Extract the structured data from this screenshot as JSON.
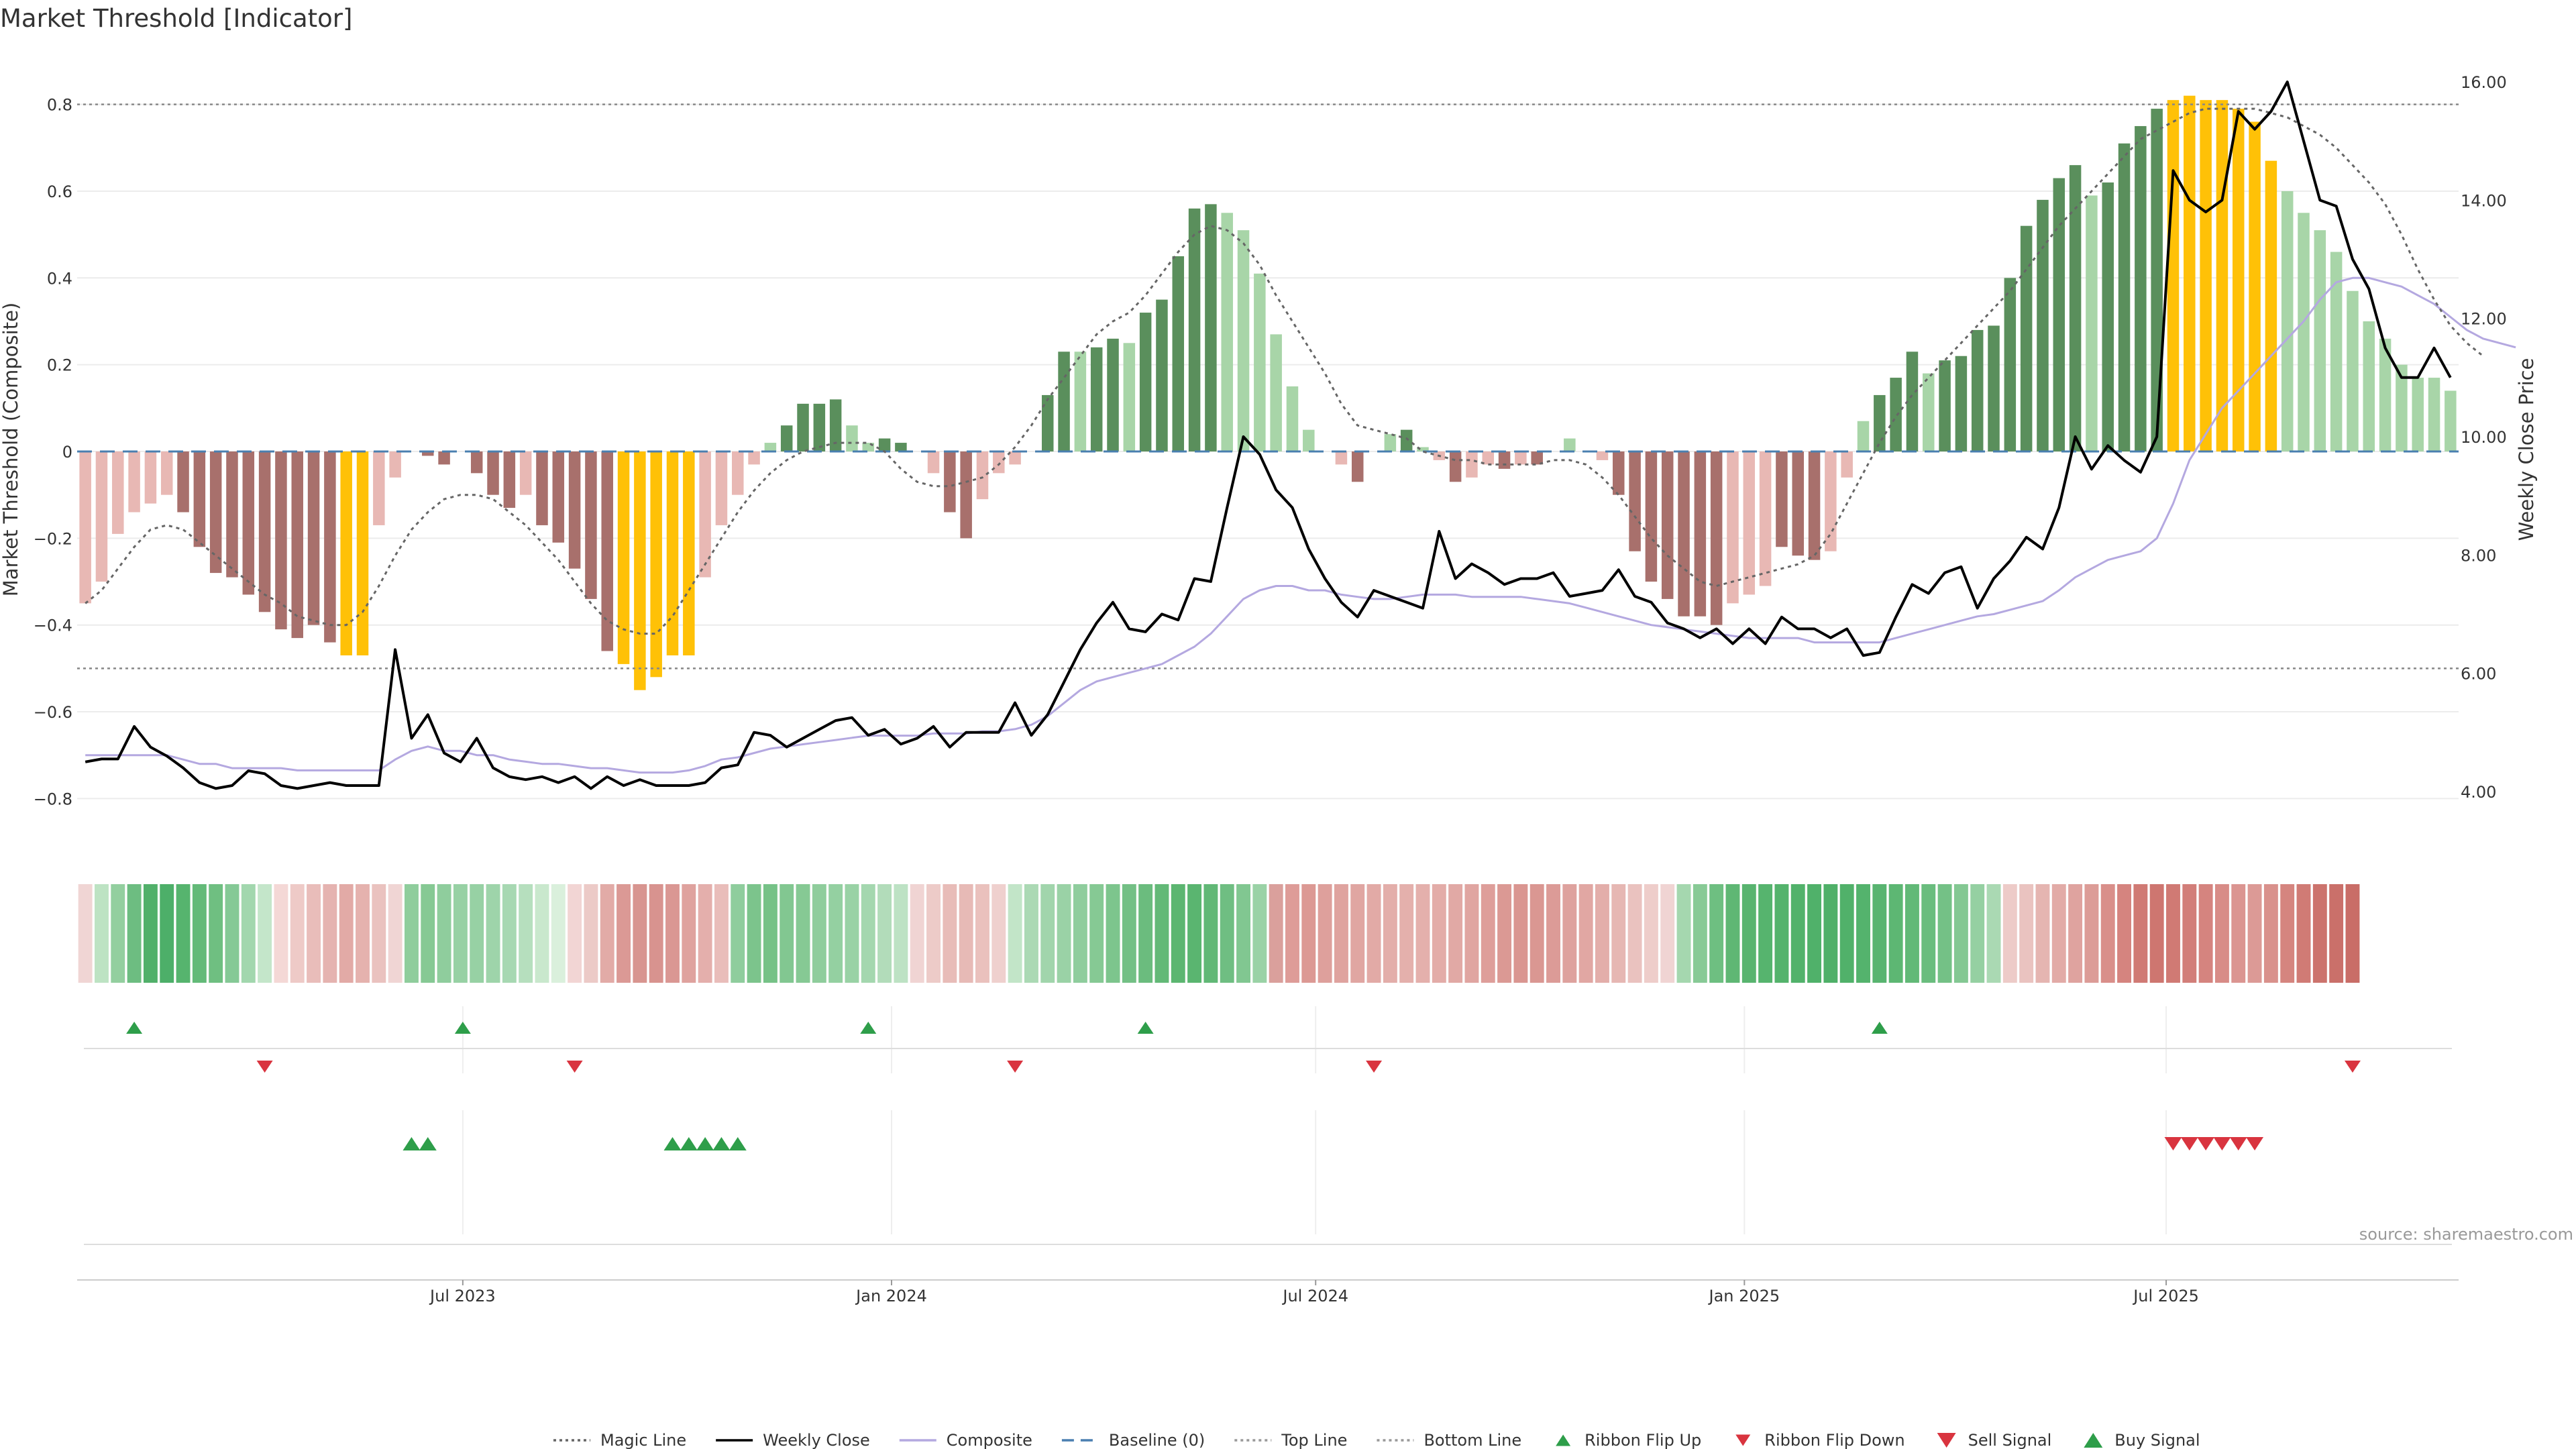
{
  "title": "Market Threshold [Indicator]",
  "source": "source: sharemaestro.com",
  "colors": {
    "bullish_strong": "#5a8f5c",
    "bullish_weak": "#a8d5a8",
    "bearish_strong": "#a8706c",
    "bearish_weak": "#e8b8b4",
    "extreme": "#ffc107",
    "weekly_close": "#000000",
    "composite": "#b4a8e0",
    "magic_line": "#666666",
    "baseline": "#4a7fb0",
    "buy": "#2e9e4a",
    "sell": "#d9343f"
  },
  "chart_data": {
    "type": "bar",
    "x_start": "2023-01-20",
    "x_step_days": 7,
    "ylabel_left": "Market Threshold (Composite)",
    "ylabel_right": "Weekly Close Price",
    "ylim_left": [
      -0.92,
      0.92
    ],
    "ylim_right": [
      3.0,
      16.5
    ],
    "yticks_left": [
      {
        "v": 0.8,
        "label": "0.8"
      },
      {
        "v": 0.6,
        "label": "0.6"
      },
      {
        "v": 0.4,
        "label": "0.4"
      },
      {
        "v": 0.2,
        "label": "0.2"
      },
      {
        "v": 0.0,
        "label": "0"
      },
      {
        "v": -0.2,
        "label": "−0.2"
      },
      {
        "v": -0.4,
        "label": "−0.4"
      },
      {
        "v": -0.6,
        "label": "−0.6"
      },
      {
        "v": -0.8,
        "label": "−0.8"
      }
    ],
    "yticks_right": [
      {
        "v": 16,
        "label": "16.00"
      },
      {
        "v": 14,
        "label": "14.00"
      },
      {
        "v": 12,
        "label": "12.00"
      },
      {
        "v": 10,
        "label": "10.00"
      },
      {
        "v": 8,
        "label": "8.00"
      },
      {
        "v": 6,
        "label": "6.00"
      },
      {
        "v": 4,
        "label": "4.00"
      }
    ],
    "xticks": [
      {
        "date": "2023-07-01",
        "label": "Jul 2023"
      },
      {
        "date": "2024-01-01",
        "label": "Jan 2024"
      },
      {
        "date": "2024-07-01",
        "label": "Jul 2024"
      },
      {
        "date": "2025-01-01",
        "label": "Jan 2025"
      },
      {
        "date": "2025-07-01",
        "label": "Jul 2025"
      }
    ],
    "top_line": 0.8,
    "bottom_line": -0.5,
    "baseline": 0,
    "composite_bars": [
      -0.35,
      -0.3,
      -0.19,
      -0.14,
      -0.12,
      -0.1,
      -0.14,
      -0.22,
      -0.28,
      -0.29,
      -0.33,
      -0.37,
      -0.41,
      -0.43,
      -0.4,
      -0.44,
      -0.47,
      -0.47,
      -0.17,
      -0.06,
      0,
      -0.01,
      -0.03,
      0,
      -0.05,
      -0.1,
      -0.13,
      -0.1,
      -0.17,
      -0.21,
      -0.27,
      -0.34,
      -0.46,
      -0.49,
      -0.55,
      -0.52,
      -0.47,
      -0.47,
      -0.29,
      -0.17,
      -0.1,
      -0.03,
      0.02,
      0.06,
      0.11,
      0.11,
      0.12,
      0.06,
      0.02,
      0.03,
      0.02,
      0,
      -0.05,
      -0.14,
      -0.2,
      -0.11,
      -0.05,
      -0.03,
      0,
      0.13,
      0.23,
      0.23,
      0.24,
      0.26,
      0.25,
      0.32,
      0.35,
      0.45,
      0.56,
      0.57,
      0.55,
      0.51,
      0.41,
      0.27,
      0.15,
      0.05,
      0,
      -0.03,
      -0.07,
      0,
      0.04,
      0.05,
      0.01,
      -0.02,
      -0.07,
      -0.06,
      -0.03,
      -0.04,
      -0.03,
      -0.03,
      0,
      0.03,
      0,
      -0.02,
      -0.1,
      -0.23,
      -0.3,
      -0.34,
      -0.38,
      -0.38,
      -0.4,
      -0.35,
      -0.33,
      -0.31,
      -0.22,
      -0.24,
      -0.25,
      -0.23,
      -0.06,
      0.07,
      0.13,
      0.17,
      0.23,
      0.18,
      0.21,
      0.22,
      0.28,
      0.29,
      0.4,
      0.52,
      0.58,
      0.63,
      0.66,
      0.59,
      0.62,
      0.71,
      0.75,
      0.79,
      0.81,
      0.82,
      0.81,
      0.81,
      0.79,
      0.76,
      0.67,
      0.6,
      0.55,
      0.51,
      0.46,
      0.37,
      0.3,
      0.26,
      0.2,
      0.17,
      0.17,
      0.14
    ],
    "bar_colors": [
      "bw",
      "bw",
      "bw",
      "bw",
      "bw",
      "bw",
      "bs",
      "bs",
      "bs",
      "bs",
      "bs",
      "bs",
      "bs",
      "bs",
      "bs",
      "bs",
      "ex",
      "ex",
      "bw",
      "bw",
      "bw",
      "bs",
      "bs",
      "bw",
      "bs",
      "bs",
      "bs",
      "bw",
      "bs",
      "bs",
      "bs",
      "bs",
      "bs",
      "ex",
      "ex",
      "ex",
      "ex",
      "ex",
      "bw",
      "bw",
      "bw",
      "bw",
      "gw",
      "gs",
      "gs",
      "gs",
      "gs",
      "gw",
      "gw",
      "gs",
      "gs",
      "bw",
      "bw",
      "bs",
      "bs",
      "bw",
      "bw",
      "bw",
      "gw",
      "gs",
      "gs",
      "gw",
      "gs",
      "gs",
      "gw",
      "gs",
      "gs",
      "gs",
      "gs",
      "gs",
      "gw",
      "gw",
      "gw",
      "gw",
      "gw",
      "gw",
      "bw",
      "bw",
      "bs",
      "gw",
      "gw",
      "gs",
      "gw",
      "bw",
      "bs",
      "bw",
      "bw",
      "bs",
      "bw",
      "bs",
      "gw",
      "gw",
      "bw",
      "bw",
      "bs",
      "bs",
      "bs",
      "bs",
      "bs",
      "bs",
      "bs",
      "bw",
      "bw",
      "bw",
      "bs",
      "bs",
      "bs",
      "bw",
      "bw",
      "gw",
      "gs",
      "gs",
      "gs",
      "gw",
      "gs",
      "gs",
      "gs",
      "gs",
      "gs",
      "gs",
      "gs",
      "gs",
      "gs",
      "gw",
      "gs",
      "gs",
      "gs",
      "gs",
      "ex",
      "ex",
      "ex",
      "ex",
      "ex",
      "ex",
      "ex",
      "gw",
      "gw",
      "gw",
      "gw",
      "gw",
      "gw",
      "gw",
      "gw",
      "gw",
      "gw",
      "gw",
      "gw",
      "gw"
    ],
    "series": [
      {
        "name": "Weekly Close",
        "axis": "right",
        "values": [
          4.5,
          4.55,
          4.55,
          5.1,
          4.75,
          4.6,
          4.4,
          4.15,
          4.05,
          4.1,
          4.35,
          4.3,
          4.1,
          4.05,
          4.1,
          4.15,
          4.1,
          4.1,
          4.1,
          6.4,
          4.9,
          5.3,
          4.65,
          4.5,
          4.9,
          4.4,
          4.25,
          4.2,
          4.25,
          4.15,
          4.25,
          4.05,
          4.25,
          4.1,
          4.2,
          4.1,
          4.1,
          4.1,
          4.15,
          4.4,
          4.45,
          5.0,
          4.95,
          4.75,
          4.9,
          5.05,
          5.2,
          5.25,
          4.95,
          5.05,
          4.8,
          4.9,
          5.1,
          4.75,
          5.0,
          5.0,
          5.0,
          5.5,
          4.95,
          5.3,
          5.85,
          6.4,
          6.85,
          7.2,
          6.75,
          6.7,
          7.0,
          6.9,
          7.6,
          7.55,
          8.8,
          10.0,
          9.7,
          9.1,
          8.8,
          8.1,
          7.6,
          7.2,
          6.95,
          7.4,
          7.3,
          7.2,
          7.1,
          8.4,
          7.6,
          7.85,
          7.7,
          7.5,
          7.6,
          7.6,
          7.7,
          7.3,
          7.35,
          7.4,
          7.75,
          7.3,
          7.2,
          6.85,
          6.75,
          6.6,
          6.75,
          6.5,
          6.75,
          6.5,
          6.95,
          6.75,
          6.75,
          6.6,
          6.75,
          6.3,
          6.35,
          6.95,
          7.5,
          7.35,
          7.7,
          7.8,
          7.1,
          7.6,
          7.9,
          8.3,
          8.1,
          8.8,
          10.0,
          9.45,
          9.85,
          9.6,
          9.4,
          10.0,
          14.5,
          14.0,
          13.8,
          14.0,
          15.5,
          15.2,
          15.5,
          16.0,
          15.0,
          14.0,
          13.9,
          13.0,
          12.5,
          11.5,
          11.0,
          11.0,
          11.5,
          11.0
        ],
        "color": "#000000"
      },
      {
        "name": "Composite",
        "axis": "left",
        "values": [
          -0.7,
          -0.7,
          -0.7,
          -0.7,
          -0.7,
          -0.7,
          -0.71,
          -0.72,
          -0.72,
          -0.73,
          -0.73,
          -0.73,
          -0.73,
          -0.735,
          -0.735,
          -0.735,
          -0.735,
          -0.735,
          -0.735,
          -0.71,
          -0.69,
          -0.68,
          -0.69,
          -0.69,
          -0.7,
          -0.7,
          -0.71,
          -0.715,
          -0.72,
          -0.72,
          -0.725,
          -0.73,
          -0.73,
          -0.735,
          -0.74,
          -0.74,
          -0.74,
          -0.735,
          -0.725,
          -0.71,
          -0.705,
          -0.695,
          -0.685,
          -0.68,
          -0.675,
          -0.67,
          -0.665,
          -0.66,
          -0.655,
          -0.655,
          -0.655,
          -0.655,
          -0.65,
          -0.65,
          -0.65,
          -0.645,
          -0.645,
          -0.64,
          -0.63,
          -0.61,
          -0.58,
          -0.55,
          -0.53,
          -0.52,
          -0.51,
          -0.5,
          -0.49,
          -0.47,
          -0.45,
          -0.42,
          -0.38,
          -0.34,
          -0.32,
          -0.31,
          -0.31,
          -0.32,
          -0.32,
          -0.33,
          -0.335,
          -0.34,
          -0.34,
          -0.335,
          -0.33,
          -0.33,
          -0.33,
          -0.335,
          -0.335,
          -0.335,
          -0.335,
          -0.34,
          -0.345,
          -0.35,
          -0.36,
          -0.37,
          -0.38,
          -0.39,
          -0.4,
          -0.405,
          -0.41,
          -0.415,
          -0.42,
          -0.425,
          -0.43,
          -0.43,
          -0.43,
          -0.43,
          -0.44,
          -0.44,
          -0.44,
          -0.44,
          -0.44,
          -0.43,
          -0.42,
          -0.41,
          -0.4,
          -0.39,
          -0.38,
          -0.375,
          -0.365,
          -0.355,
          -0.345,
          -0.32,
          -0.29,
          -0.27,
          -0.25,
          -0.24,
          -0.23,
          -0.2,
          -0.12,
          -0.02,
          0.04,
          0.1,
          0.14,
          0.18,
          0.22,
          0.26,
          0.3,
          0.35,
          0.39,
          0.4,
          0.4,
          0.39,
          0.38,
          0.36,
          0.34,
          0.31,
          0.28,
          0.26,
          0.25,
          0.24
        ],
        "color": "#b4a8e0"
      },
      {
        "name": "Magic Line",
        "axis": "left",
        "values": [
          -0.35,
          -0.32,
          -0.27,
          -0.22,
          -0.18,
          -0.17,
          -0.18,
          -0.21,
          -0.24,
          -0.27,
          -0.3,
          -0.33,
          -0.35,
          -0.38,
          -0.39,
          -0.4,
          -0.4,
          -0.37,
          -0.31,
          -0.24,
          -0.18,
          -0.14,
          -0.11,
          -0.1,
          -0.1,
          -0.11,
          -0.14,
          -0.17,
          -0.21,
          -0.25,
          -0.3,
          -0.35,
          -0.39,
          -0.41,
          -0.42,
          -0.42,
          -0.38,
          -0.32,
          -0.26,
          -0.2,
          -0.14,
          -0.09,
          -0.05,
          -0.02,
          0.0,
          0.01,
          0.02,
          0.02,
          0.02,
          0.0,
          -0.04,
          -0.07,
          -0.08,
          -0.08,
          -0.07,
          -0.06,
          -0.03,
          0.01,
          0.06,
          0.12,
          0.17,
          0.22,
          0.27,
          0.3,
          0.32,
          0.36,
          0.41,
          0.46,
          0.5,
          0.52,
          0.51,
          0.48,
          0.43,
          0.36,
          0.3,
          0.24,
          0.18,
          0.11,
          0.06,
          0.05,
          0.04,
          0.03,
          0.0,
          -0.01,
          -0.02,
          -0.02,
          -0.03,
          -0.03,
          -0.03,
          -0.03,
          -0.02,
          -0.02,
          -0.03,
          -0.06,
          -0.1,
          -0.15,
          -0.2,
          -0.24,
          -0.27,
          -0.3,
          -0.31,
          -0.3,
          -0.29,
          -0.28,
          -0.27,
          -0.26,
          -0.24,
          -0.19,
          -0.12,
          -0.05,
          0.02,
          0.08,
          0.13,
          0.17,
          0.21,
          0.25,
          0.29,
          0.33,
          0.37,
          0.42,
          0.47,
          0.52,
          0.56,
          0.6,
          0.64,
          0.68,
          0.72,
          0.74,
          0.76,
          0.78,
          0.79,
          0.79,
          0.79,
          0.79,
          0.78,
          0.77,
          0.75,
          0.73,
          0.7,
          0.66,
          0.62,
          0.57,
          0.5,
          0.42,
          0.35,
          0.29,
          0.25,
          0.22
        ],
        "color": "#666666"
      }
    ],
    "ribbon_colors": [
      "#f0d5d4",
      "#bde3c3",
      "#93cf9f",
      "#6dbd81",
      "#51b06a",
      "#4daf69",
      "#56b46e",
      "#63ba78",
      "#6fbf81",
      "#85c996",
      "#a2d7ae",
      "#c4e6ca",
      "#f4d8d6",
      "#eecac7",
      "#e9bdba",
      "#e5b3b0",
      "#e2aaa6",
      "#e5b2ae",
      "#eac2bf",
      "#f0d5d4",
      "#8fcd9c",
      "#86c994",
      "#8fcd9d",
      "#97d1a4",
      "#97d1a4",
      "#9ed4aa",
      "#a7d8b2",
      "#b6dfbe",
      "#c9e8cd",
      "#daf0dc",
      "#f2d5d4",
      "#eccac7",
      "#e2aba7",
      "#db9995",
      "#d89590",
      "#d8938f",
      "#da9793",
      "#dfa29e",
      "#e4afac",
      "#e9bdba",
      "#8fcd9d",
      "#7cc48c",
      "#76c287",
      "#82c791",
      "#86c994",
      "#8fcd9c",
      "#94d0a1",
      "#99d2a5",
      "#a4d7af",
      "#b2dcba",
      "#bde2c4",
      "#f0d4d3",
      "#edcbc8",
      "#e8bcb8",
      "#e7bab6",
      "#eac1bd",
      "#efd0ce",
      "#c2e5c8",
      "#abd9b4",
      "#a1d5ac",
      "#9ad2a6",
      "#8fcd9d",
      "#86c994",
      "#7dc58d",
      "#73c085",
      "#6bbc7e",
      "#63b977",
      "#5cb671",
      "#5ab570",
      "#61b876",
      "#6fbe82",
      "#81c791",
      "#9ad2a6",
      "#daa09c",
      "#de9c98",
      "#dc9994",
      "#dea09c",
      "#dfa39f",
      "#e0a6a2",
      "#e2aaa6",
      "#e3aeaa",
      "#e4b0ac",
      "#e4b0ac",
      "#e3aca8",
      "#e1a9a5",
      "#e0a5a1",
      "#de9e9a",
      "#db9994",
      "#da9691",
      "#da9792",
      "#dc9b97",
      "#dea29e",
      "#e1a7a3",
      "#e3aeaa",
      "#e6b7b3",
      "#eac2bf",
      "#eecdca",
      "#f0d4d3",
      "#a5d7af",
      "#88ca96",
      "#6ebf81",
      "#5fb774",
      "#58b46f",
      "#56b46e",
      "#54b36c",
      "#52b26b",
      "#50b16a",
      "#4fb068",
      "#51b16a",
      "#54b36d",
      "#58b470",
      "#5db773",
      "#62b977",
      "#6abd7e",
      "#74c186",
      "#84c893",
      "#95d0a2",
      "#aad9b3",
      "#edcbc8",
      "#eac3c0",
      "#e5b5b1",
      "#e2aba7",
      "#dfa39f",
      "#dc9c97",
      "#d98f8a",
      "#d5847f",
      "#d07a74",
      "#ce7670",
      "#d07a74",
      "#d27e79",
      "#d5847f",
      "#d88c87",
      "#db9591",
      "#dc9a96",
      "#d9918c",
      "#d5857f",
      "#d07b75",
      "#cc736d",
      "#ca706a",
      "#c96d67"
    ],
    "markers": {
      "ribbon_flip_up": [
        "2023-02-10",
        "2023-07-01",
        "2023-12-22",
        "2024-04-19",
        "2025-02-28"
      ],
      "ribbon_flip_down": [
        "2023-04-07",
        "2023-08-18",
        "2024-02-23",
        "2024-07-26",
        "2025-09-19"
      ],
      "buy_signal": [
        "2023-06-09",
        "2023-06-16",
        "2023-09-29",
        "2023-10-06",
        "2023-10-13",
        "2023-10-20",
        "2023-10-27"
      ],
      "sell_signal": [
        "2025-07-04",
        "2025-07-11",
        "2025-07-18",
        "2025-07-25",
        "2025-08-01",
        "2025-08-08"
      ]
    }
  },
  "legend": {
    "items": [
      {
        "label": "Magic Line",
        "kind": "dotted-line",
        "color": "#666666"
      },
      {
        "label": "Weekly Close",
        "kind": "solid-line",
        "color": "#000000"
      },
      {
        "label": "Composite",
        "kind": "solid-line",
        "color": "#b4a8e0"
      },
      {
        "label": "Baseline (0)",
        "kind": "dashed-line",
        "color": "#4a7fb0"
      },
      {
        "label": "Top Line",
        "kind": "dotted-line",
        "color": "#999999"
      },
      {
        "label": "Bottom Line",
        "kind": "dotted-line",
        "color": "#999999"
      },
      {
        "label": "Ribbon Flip Up",
        "kind": "triangle-up",
        "color": "#2e9e4a"
      },
      {
        "label": "Ribbon Flip Down",
        "kind": "triangle-down",
        "color": "#d9343f"
      },
      {
        "label": "Sell Signal",
        "kind": "triangle-down-lg",
        "color": "#d9343f"
      },
      {
        "label": "Buy Signal",
        "kind": "triangle-up-lg",
        "color": "#2e9e4a"
      }
    ]
  }
}
